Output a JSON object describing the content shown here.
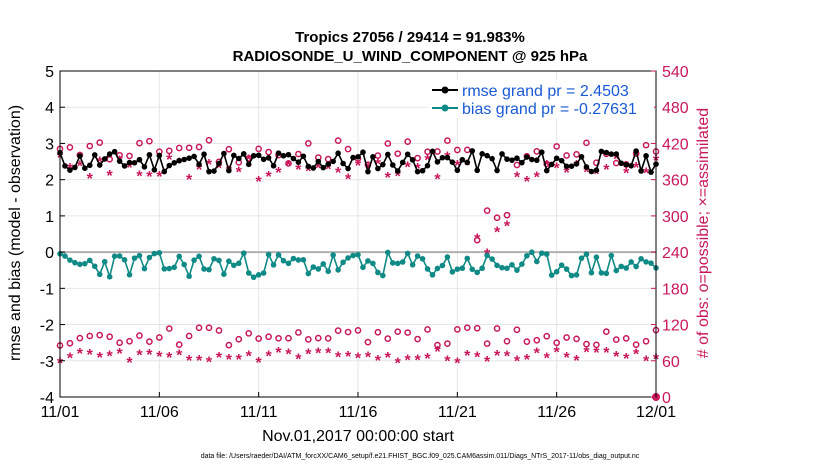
{
  "chart_data": {
    "type": "line",
    "title_line1": "Tropics 27056 / 29414 = 91.983%",
    "title_line2": "RADIOSONDE_U_WIND_COMPONENT @ 925 hPa",
    "xlabel": "Nov.01,2017 00:00:00 start",
    "ylabel_left": "rmse and bias (model - observation)",
    "ylabel_right": "# of obs: o=possible; ×=assimilated",
    "x_ticks": [
      "11/01",
      "11/06",
      "11/11",
      "11/16",
      "11/21",
      "11/26",
      "12/01"
    ],
    "x_range_days": [
      0,
      30
    ],
    "y_left_ticks": [
      "5",
      "4",
      "3",
      "2",
      "1",
      "0",
      "-1",
      "-2",
      "-3",
      "-4"
    ],
    "y_left_range": [
      -4,
      5
    ],
    "y_right_ticks": [
      "540",
      "480",
      "420",
      "360",
      "300",
      "240",
      "180",
      "120",
      "60",
      "0"
    ],
    "y_right_range": [
      0,
      540
    ],
    "legend": [
      {
        "label": "rmse grand pr = 2.4503",
        "color": "#000000"
      },
      {
        "label": "bias grand pr = -0.27631",
        "color": "#0f8a86"
      }
    ],
    "footnote": "data file: /Users/raeder/DAI/ATM_forcXX/CAM6_setup/f.e21.FHIST_BGC.f09_025.CAM6assim.011/Diags_NTrS_2017-11/obs_diag_output.nc",
    "series": [
      {
        "name": "rmse",
        "axis": "left",
        "color": "#000000",
        "base": 2.5,
        "amplitude": 0.3,
        "seed": 11
      },
      {
        "name": "bias",
        "axis": "left",
        "color": "#0f8a86",
        "base": -0.35,
        "amplitude": 0.35,
        "seed": 23
      },
      {
        "name": "possible_main",
        "axis": "right",
        "color": "#c8185a",
        "marker": "o",
        "base": 405,
        "amplitude": 22,
        "seed": 37
      },
      {
        "name": "assimilated_main",
        "axis": "right",
        "color": "#c8185a",
        "marker": "*",
        "base": 375,
        "amplitude": 22,
        "seed": 41
      },
      {
        "name": "possible_low",
        "axis": "right",
        "color": "#c8185a",
        "marker": "o",
        "base": 100,
        "amplitude": 15,
        "seed": 53
      },
      {
        "name": "assimilated_low",
        "axis": "right",
        "color": "#c8185a",
        "marker": "*",
        "base": 65,
        "amplitude": 10,
        "seed": 59
      }
    ],
    "colors": {
      "rmse": "#000000",
      "bias": "#0f8a86",
      "obs": "#c8185a",
      "zero_line": "#b0b0b0"
    }
  }
}
